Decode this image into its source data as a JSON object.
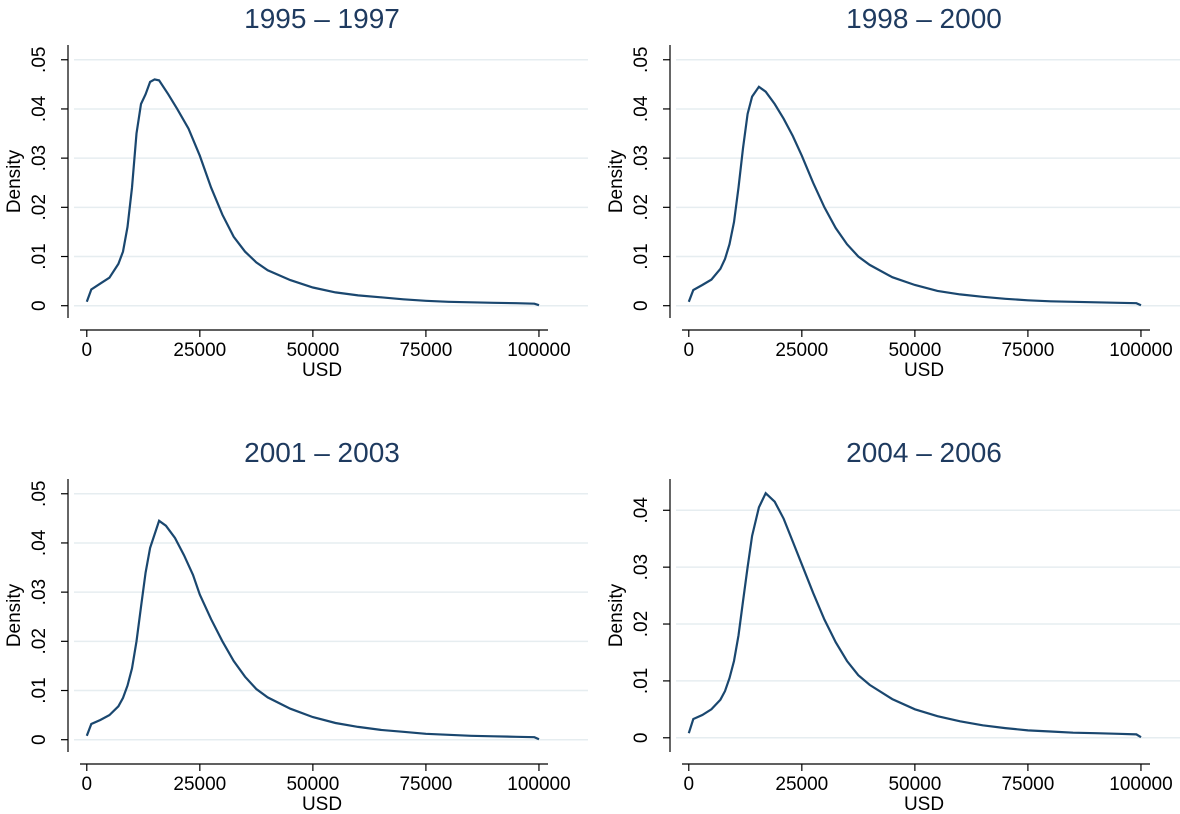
{
  "chart_data": [
    {
      "type": "line",
      "title": "1995 – 1997",
      "xlabel": "USD",
      "ylabel": "Density",
      "color": "#1a476f",
      "grid": true,
      "x": [
        0,
        1000,
        3000,
        5000,
        7000,
        8000,
        9000,
        10000,
        11000,
        12000,
        13000,
        14000,
        15000,
        16000,
        18000,
        20000,
        22500,
        25000,
        27500,
        30000,
        32500,
        35000,
        37500,
        40000,
        45000,
        50000,
        55000,
        60000,
        65000,
        70000,
        75000,
        80000,
        85000,
        90000,
        95000,
        99000,
        100000
      ],
      "values": [
        0.0008,
        0.0033,
        0.0045,
        0.0057,
        0.0085,
        0.011,
        0.016,
        0.024,
        0.035,
        0.041,
        0.043,
        0.0455,
        0.046,
        0.0458,
        0.043,
        0.04,
        0.036,
        0.0305,
        0.024,
        0.0185,
        0.014,
        0.011,
        0.0088,
        0.0072,
        0.0052,
        0.0037,
        0.0027,
        0.0021,
        0.0017,
        0.0013,
        0.001,
        0.0008,
        0.0007,
        0.0006,
        0.0005,
        0.0004,
        0.0001
      ],
      "xlim": [
        -1500,
        102000
      ],
      "ylim": [
        -0.0025,
        0.053
      ],
      "xticks": [
        0,
        25000,
        50000,
        75000,
        100000
      ],
      "yticks": [
        0,
        {
          "value": 0.01,
          "label": ".01"
        },
        {
          "value": 0.02,
          "label": ".02"
        },
        {
          "value": 0.03,
          "label": ".03"
        },
        {
          "value": 0.04,
          "label": ".04"
        },
        {
          "value": 0.05,
          "label": ".05"
        }
      ]
    },
    {
      "type": "line",
      "title": "1998 – 2000",
      "xlabel": "USD",
      "ylabel": "Density",
      "color": "#1a476f",
      "grid": true,
      "x": [
        0,
        1000,
        3000,
        5000,
        7000,
        8000,
        9000,
        10000,
        11000,
        12000,
        13000,
        14000,
        15500,
        17000,
        19000,
        21000,
        23000,
        25000,
        27500,
        30000,
        32500,
        35000,
        37500,
        40000,
        45000,
        50000,
        55000,
        60000,
        65000,
        70000,
        75000,
        80000,
        85000,
        90000,
        95000,
        99000,
        100000
      ],
      "values": [
        0.0008,
        0.0032,
        0.0042,
        0.0053,
        0.0075,
        0.0095,
        0.0125,
        0.017,
        0.024,
        0.032,
        0.039,
        0.0425,
        0.0445,
        0.0435,
        0.041,
        0.038,
        0.0345,
        0.0305,
        0.025,
        0.02,
        0.0158,
        0.0125,
        0.01,
        0.0083,
        0.0058,
        0.0042,
        0.003,
        0.0023,
        0.0018,
        0.0014,
        0.0011,
        0.0009,
        0.0008,
        0.0007,
        0.0006,
        0.0005,
        0.0001
      ],
      "xlim": [
        -1500,
        102000
      ],
      "ylim": [
        -0.0025,
        0.053
      ],
      "xticks": [
        0,
        25000,
        50000,
        75000,
        100000
      ],
      "yticks": [
        0,
        {
          "value": 0.01,
          "label": ".01"
        },
        {
          "value": 0.02,
          "label": ".02"
        },
        {
          "value": 0.03,
          "label": ".03"
        },
        {
          "value": 0.04,
          "label": ".04"
        },
        {
          "value": 0.05,
          "label": ".05"
        }
      ]
    },
    {
      "type": "line",
      "title": "2001 – 2003",
      "xlabel": "USD",
      "ylabel": "Density",
      "color": "#1a476f",
      "grid": true,
      "x": [
        0,
        1000,
        3000,
        5000,
        7000,
        8000,
        9000,
        10000,
        11000,
        12000,
        13000,
        14000,
        16000,
        17500,
        19500,
        21500,
        23500,
        25000,
        27500,
        30000,
        32500,
        35000,
        37500,
        40000,
        45000,
        50000,
        55000,
        60000,
        65000,
        70000,
        75000,
        80000,
        85000,
        90000,
        95000,
        99000,
        100000
      ],
      "values": [
        0.0008,
        0.0032,
        0.004,
        0.005,
        0.0068,
        0.0085,
        0.011,
        0.0145,
        0.02,
        0.027,
        0.034,
        0.039,
        0.0445,
        0.0435,
        0.041,
        0.0375,
        0.0335,
        0.0295,
        0.0245,
        0.02,
        0.016,
        0.0128,
        0.0103,
        0.0086,
        0.0063,
        0.0046,
        0.0034,
        0.0026,
        0.002,
        0.0016,
        0.0012,
        0.001,
        0.0008,
        0.0007,
        0.0006,
        0.0005,
        0.0001
      ],
      "xlim": [
        -1500,
        102000
      ],
      "ylim": [
        -0.0025,
        0.053
      ],
      "xticks": [
        0,
        25000,
        50000,
        75000,
        100000
      ],
      "yticks": [
        0,
        {
          "value": 0.01,
          "label": ".01"
        },
        {
          "value": 0.02,
          "label": ".02"
        },
        {
          "value": 0.03,
          "label": ".03"
        },
        {
          "value": 0.04,
          "label": ".04"
        },
        {
          "value": 0.05,
          "label": ".05"
        }
      ]
    },
    {
      "type": "line",
      "title": "2004 – 2006",
      "xlabel": "USD",
      "ylabel": "Density",
      "color": "#1a476f",
      "grid": true,
      "x": [
        0,
        1000,
        3000,
        5000,
        7000,
        8000,
        9000,
        10000,
        11000,
        12000,
        13000,
        14000,
        15500,
        17000,
        19000,
        21000,
        23000,
        25000,
        27500,
        30000,
        32500,
        35000,
        37500,
        40000,
        45000,
        50000,
        55000,
        60000,
        65000,
        70000,
        75000,
        80000,
        85000,
        90000,
        95000,
        99000,
        100000
      ],
      "values": [
        0.0008,
        0.0033,
        0.004,
        0.005,
        0.0067,
        0.0082,
        0.0105,
        0.0135,
        0.018,
        0.024,
        0.03,
        0.0355,
        0.0405,
        0.043,
        0.0415,
        0.0385,
        0.0345,
        0.0305,
        0.0255,
        0.0208,
        0.0168,
        0.0135,
        0.011,
        0.0093,
        0.0068,
        0.005,
        0.0038,
        0.0029,
        0.0022,
        0.0017,
        0.0013,
        0.0011,
        0.0009,
        0.0008,
        0.0007,
        0.0006,
        0.0001
      ],
      "xlim": [
        -1500,
        102000
      ],
      "ylim": [
        -0.0025,
        0.0455
      ],
      "xticks": [
        0,
        25000,
        50000,
        75000,
        100000
      ],
      "yticks": [
        0,
        {
          "value": 0.01,
          "label": ".01"
        },
        {
          "value": 0.02,
          "label": ".02"
        },
        {
          "value": 0.03,
          "label": ".03"
        },
        {
          "value": 0.04,
          "label": ".04"
        }
      ]
    }
  ]
}
